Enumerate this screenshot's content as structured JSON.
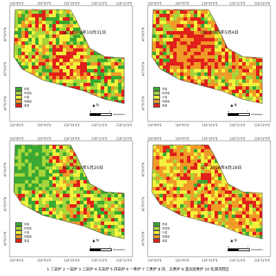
{
  "panels": [
    {
      "id": "A",
      "title": "（A）2000年10月31日"
    },
    {
      "id": "B",
      "title": "（B）2005年5月4日"
    },
    {
      "id": "C",
      "title": "（C）2010年5月20日"
    },
    {
      "id": "D",
      "title": "（D）2016年4月18日"
    }
  ],
  "coords": {
    "top": [
      "116°8'0\"E",
      "116°9'0\"E",
      "116°10'0\"E",
      "116°11'0\"E",
      "116°12'0\"E"
    ],
    "bottom": [
      "116°8'0\"E",
      "116°9'0\"E",
      "116°10'0\"E",
      "116°11'0\"E",
      "116°12'0\"E"
    ],
    "left": [
      "40°54'0\"N",
      "40°53'0\"N",
      "40°52'0\"N"
    ]
  },
  "legend": [
    {
      "label": "低温",
      "color": "#3aa832"
    },
    {
      "label": "较低温",
      "color": "#a5d63a"
    },
    {
      "label": "中温",
      "color": "#f2f23c"
    },
    {
      "label": "较高温",
      "color": "#f09a28"
    },
    {
      "label": "高温",
      "color": "#e0201a"
    }
  ],
  "scale": {
    "label": "Kilometers",
    "ticks": [
      "0",
      "1"
    ]
  },
  "north_label": "N",
  "footer": "1 三高炉 2 一高炉 3 二高炉 4 五高炉 5 四高炉 6 一焦炉 7 三焦炉 8 四、五焦炉 9 湿法熄焦炉 10 轧钢流程区"
}
